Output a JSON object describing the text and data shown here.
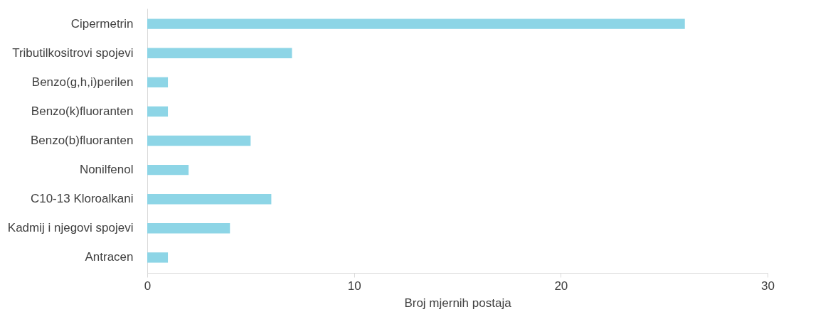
{
  "chart_data": {
    "type": "bar",
    "orientation": "horizontal",
    "categories": [
      "Cipermetrin ",
      "Tributilkositrovi spojevi",
      "Benzo(g,h,i)perilen",
      "Benzo(k)fluoranten",
      "Benzo(b)fluoranten",
      "Nonilfenol",
      "C10-13 Kloroalkani",
      "Kadmij i njegovi spojevi",
      "Antracen"
    ],
    "values": [
      26,
      7,
      1,
      1,
      5,
      2,
      6,
      4,
      1
    ],
    "color": "#8dd5e6",
    "xlabel": "Broj mjernih postaja",
    "xlim": [
      0,
      30
    ],
    "xticks": [
      0,
      10,
      20,
      30
    ]
  }
}
